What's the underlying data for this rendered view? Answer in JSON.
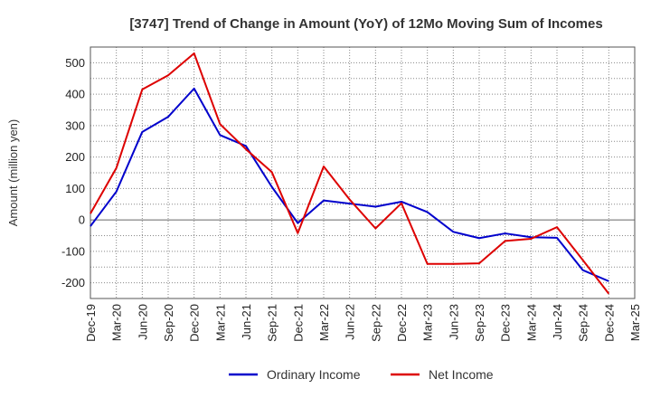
{
  "chart_data": {
    "type": "line",
    "title": "[3747]  Trend of Change in Amount (YoY) of 12Mo Moving Sum of Incomes",
    "xlabel": "",
    "ylabel": "Amount (million yen)",
    "ylim": [
      -250,
      550
    ],
    "yticks": [
      -200,
      -100,
      0,
      100,
      200,
      300,
      400,
      500
    ],
    "grid": true,
    "legend_position": "bottom",
    "categories": [
      "Dec-19",
      "Mar-20",
      "Jun-20",
      "Sep-20",
      "Dec-20",
      "Mar-21",
      "Jun-21",
      "Sep-21",
      "Dec-21",
      "Mar-22",
      "Jun-22",
      "Sep-22",
      "Dec-22",
      "Mar-23",
      "Jun-23",
      "Sep-23",
      "Dec-23",
      "Mar-24",
      "Jun-24",
      "Sep-24",
      "Dec-24",
      "Mar-25"
    ],
    "series": [
      {
        "name": "Ordinary Income",
        "color": "#0000cc",
        "values": [
          -20,
          90,
          280,
          328,
          418,
          270,
          235,
          105,
          -10,
          62,
          52,
          42,
          58,
          25,
          -38,
          -58,
          -43,
          -55,
          -57,
          -160,
          -195,
          null
        ]
      },
      {
        "name": "Net Income",
        "color": "#dd0000",
        "values": [
          20,
          165,
          415,
          460,
          530,
          305,
          225,
          152,
          -42,
          170,
          65,
          -27,
          53,
          -140,
          -140,
          -138,
          -67,
          -60,
          -23,
          -128,
          -235,
          null
        ]
      }
    ]
  }
}
